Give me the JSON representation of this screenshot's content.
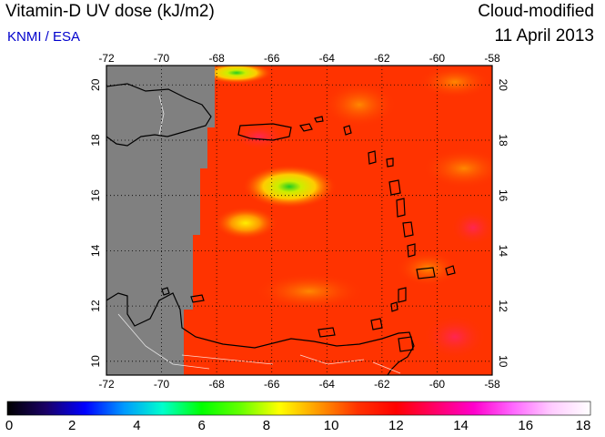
{
  "header": {
    "title": "Vitamin-D UV dose (kJ/m2)",
    "source": "KNMI / ESA",
    "product": "Cloud-modified",
    "date": "11 April 2013"
  },
  "map": {
    "lon_ticks": [
      "-72",
      "-70",
      "-68",
      "-66",
      "-64",
      "-62",
      "-60",
      "-58"
    ],
    "lat_ticks": [
      "10",
      "12",
      "14",
      "16",
      "18",
      "20"
    ],
    "no_data_color": "#808080",
    "base_color": "#ff3300"
  },
  "colorbar": {
    "ticks": [
      "0",
      "2",
      "4",
      "6",
      "8",
      "10",
      "12",
      "14",
      "16",
      "18"
    ],
    "colors": [
      "#000000",
      "#1a0066",
      "#0000ff",
      "#0099ff",
      "#00ffcc",
      "#00ff00",
      "#66ff00",
      "#ffff00",
      "#ff9900",
      "#ff3300",
      "#ff0000",
      "#ff0066",
      "#ff00cc",
      "#ff66ff",
      "#ffccff",
      "#ffffff"
    ]
  }
}
